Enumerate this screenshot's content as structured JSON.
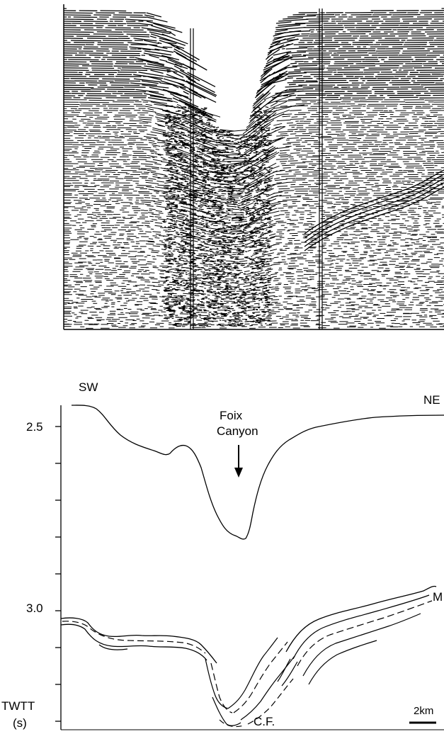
{
  "figure": {
    "top_panel": "seismic reflection profile",
    "bottom_panel": {
      "direction_left": "SW",
      "direction_right": "NE",
      "canyon_label_line1": "Foix",
      "canyon_label_line2": "Canyon",
      "marker_right": "M",
      "marker_bottom": "C.F.",
      "scale_bar_label": "2km",
      "axis_label_line1": "TWTT",
      "axis_label_line2": "(s)",
      "y_tick_labels": [
        "2.5",
        "3.0"
      ]
    }
  },
  "colors": {
    "ink": "#000000",
    "paper": "#ffffff"
  }
}
